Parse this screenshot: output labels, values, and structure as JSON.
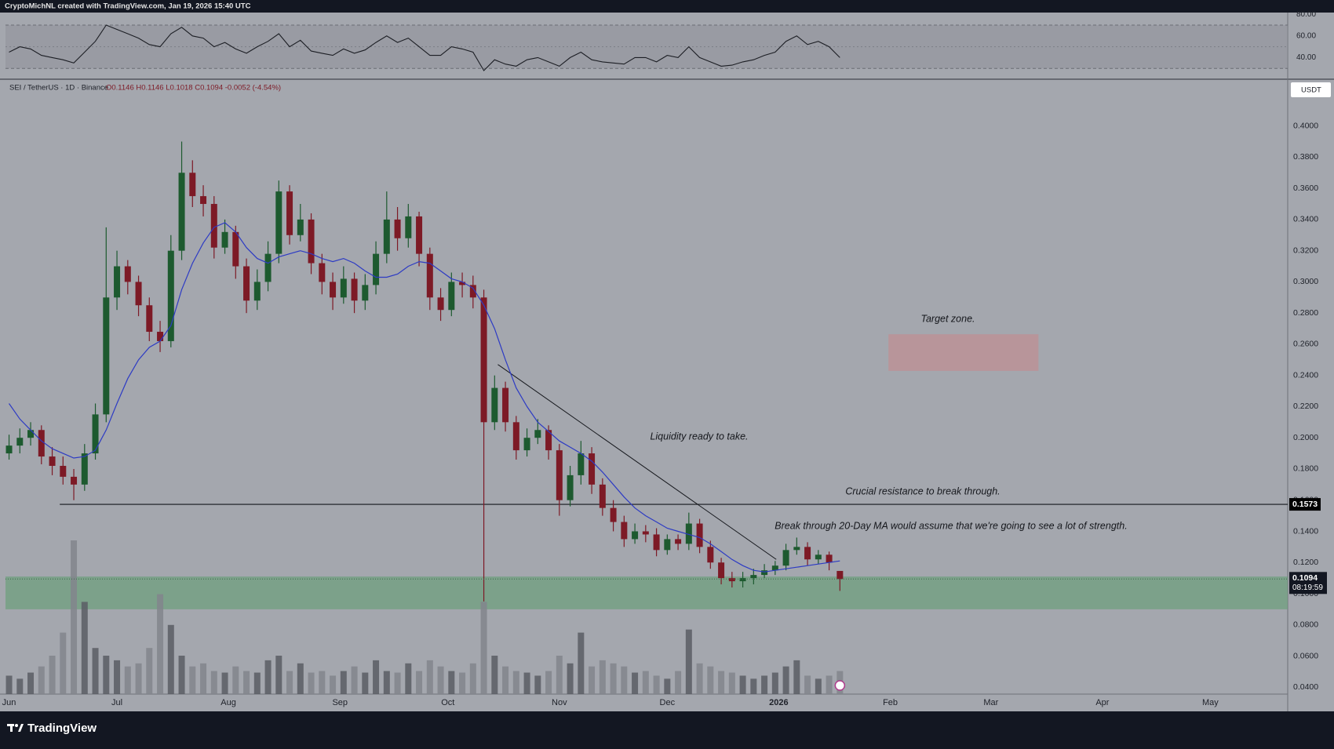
{
  "header": "CryptoMichNL created with TradingView.com, Jan 19, 2026 15:40 UTC",
  "footer": "TradingView",
  "chart_data": [
    {
      "type": "line",
      "series": [
        {
          "color": "#1c1e24",
          "values": [
            45,
            50,
            48,
            42,
            40,
            38,
            35,
            45,
            55,
            70,
            66,
            62,
            58,
            52,
            50,
            62,
            68,
            60,
            58,
            50,
            54,
            48,
            44,
            50,
            55,
            62,
            50,
            56,
            46,
            44,
            42,
            48,
            44,
            47,
            54,
            60,
            54,
            58,
            50,
            42,
            42,
            50,
            48,
            45,
            28,
            38,
            34,
            32,
            38,
            40,
            36,
            32,
            40,
            45,
            38,
            36,
            35,
            34,
            40,
            40,
            36,
            42,
            40,
            50,
            40,
            36,
            32,
            33,
            36,
            38,
            42,
            45,
            55,
            60,
            52,
            55,
            50,
            40
          ]
        }
      ],
      "band": [
        30,
        70
      ],
      "midline": 50,
      "band_color": "#8f929a",
      "ylim": [
        20,
        81.6
      ],
      "yticks": [
        {
          "value": 80,
          "label": "80.00"
        },
        {
          "value": 60,
          "label": "60.00"
        },
        {
          "value": 40,
          "label": "40.00"
        }
      ]
    },
    {
      "type": "candlestick",
      "symbol": "SEI / TetherUS · 1D · Binance",
      "ohlc_text": "O0.1146 H0.1146 L0.1018 C0.1094 -0.0052 (-4.54%)",
      "currency": "USDT",
      "up_color": "#1d5a2f",
      "down_color": "#7d1a26",
      "categories": [
        null,
        null,
        null,
        null,
        null,
        null,
        null,
        null,
        null,
        null,
        null,
        null,
        null,
        null,
        null,
        null,
        null,
        null,
        null,
        null,
        null,
        null,
        null,
        null,
        null,
        null,
        null,
        null,
        null,
        null,
        null,
        null,
        null,
        null,
        null,
        null,
        null,
        null,
        null,
        null,
        null,
        null,
        null,
        null,
        null,
        null,
        null,
        null,
        null,
        null,
        null,
        null,
        null,
        null,
        null,
        null,
        null,
        null,
        null,
        null,
        null,
        null,
        null,
        null,
        null,
        null,
        null,
        null,
        null,
        null,
        null,
        null,
        null,
        null,
        null,
        null,
        null,
        null
      ],
      "open": [
        0.19,
        0.195,
        0.2,
        0.205,
        0.188,
        0.182,
        0.175,
        0.17,
        0.19,
        0.215,
        0.29,
        0.31,
        0.3,
        0.285,
        0.268,
        0.262,
        0.32,
        0.37,
        0.355,
        0.35,
        0.322,
        0.332,
        0.31,
        0.288,
        0.3,
        0.318,
        0.358,
        0.33,
        0.34,
        0.312,
        0.3,
        0.29,
        0.302,
        0.288,
        0.298,
        0.318,
        0.34,
        0.328,
        0.342,
        0.318,
        0.29,
        0.282,
        0.3,
        0.298,
        0.29,
        0.21,
        0.232,
        0.21,
        0.192,
        0.2,
        0.205,
        0.192,
        0.16,
        0.176,
        0.19,
        0.17,
        0.155,
        0.146,
        0.135,
        0.14,
        0.138,
        0.128,
        0.135,
        0.132,
        0.145,
        0.13,
        0.12,
        0.11,
        0.108,
        0.11,
        0.112,
        0.115,
        0.118,
        0.128,
        0.13,
        0.122,
        0.125,
        0.1146
      ],
      "high": [
        0.202,
        0.206,
        0.21,
        0.208,
        0.194,
        0.188,
        0.18,
        0.196,
        0.222,
        0.335,
        0.32,
        0.314,
        0.304,
        0.29,
        0.275,
        0.33,
        0.39,
        0.378,
        0.362,
        0.355,
        0.34,
        0.336,
        0.315,
        0.308,
        0.326,
        0.365,
        0.362,
        0.35,
        0.344,
        0.318,
        0.306,
        0.31,
        0.306,
        0.305,
        0.326,
        0.358,
        0.348,
        0.35,
        0.345,
        0.322,
        0.296,
        0.306,
        0.306,
        0.304,
        0.295,
        0.24,
        0.236,
        0.214,
        0.206,
        0.212,
        0.208,
        0.196,
        0.182,
        0.198,
        0.194,
        0.174,
        0.16,
        0.15,
        0.145,
        0.144,
        0.142,
        0.138,
        0.138,
        0.152,
        0.148,
        0.134,
        0.123,
        0.114,
        0.114,
        0.116,
        0.119,
        0.121,
        0.132,
        0.136,
        0.133,
        0.128,
        0.127,
        0.1146
      ],
      "low": [
        0.186,
        0.19,
        0.195,
        0.183,
        0.176,
        0.17,
        0.16,
        0.166,
        0.186,
        0.21,
        0.282,
        0.292,
        0.278,
        0.262,
        0.255,
        0.258,
        0.314,
        0.348,
        0.342,
        0.315,
        0.318,
        0.302,
        0.28,
        0.282,
        0.294,
        0.312,
        0.324,
        0.326,
        0.305,
        0.292,
        0.282,
        0.286,
        0.28,
        0.282,
        0.292,
        0.312,
        0.32,
        0.322,
        0.31,
        0.282,
        0.275,
        0.278,
        0.29,
        0.283,
        0.095,
        0.205,
        0.204,
        0.186,
        0.188,
        0.196,
        0.186,
        0.15,
        0.156,
        0.17,
        0.164,
        0.15,
        0.14,
        0.13,
        0.132,
        0.133,
        0.124,
        0.125,
        0.128,
        0.128,
        0.126,
        0.116,
        0.106,
        0.104,
        0.104,
        0.106,
        0.11,
        0.112,
        0.115,
        0.125,
        0.118,
        0.119,
        0.115,
        0.1018
      ],
      "close": [
        0.195,
        0.2,
        0.205,
        0.188,
        0.182,
        0.175,
        0.17,
        0.19,
        0.215,
        0.29,
        0.31,
        0.3,
        0.285,
        0.268,
        0.262,
        0.32,
        0.37,
        0.355,
        0.35,
        0.322,
        0.332,
        0.31,
        0.288,
        0.3,
        0.318,
        0.358,
        0.33,
        0.34,
        0.312,
        0.3,
        0.29,
        0.302,
        0.288,
        0.298,
        0.318,
        0.34,
        0.328,
        0.342,
        0.318,
        0.29,
        0.282,
        0.3,
        0.298,
        0.29,
        0.21,
        0.232,
        0.21,
        0.192,
        0.2,
        0.205,
        0.192,
        0.16,
        0.176,
        0.19,
        0.17,
        0.155,
        0.146,
        0.135,
        0.14,
        0.138,
        0.128,
        0.135,
        0.132,
        0.145,
        0.13,
        0.12,
        0.11,
        0.108,
        0.11,
        0.112,
        0.115,
        0.118,
        0.128,
        0.13,
        0.122,
        0.125,
        0.12,
        0.1094
      ],
      "volume": {
        "up_color": "#5a5d64",
        "down_color": "#82858c",
        "values": [
          12,
          10,
          14,
          18,
          25,
          40,
          100,
          60,
          30,
          25,
          22,
          18,
          20,
          30,
          65,
          45,
          25,
          18,
          20,
          15,
          14,
          18,
          15,
          14,
          22,
          25,
          15,
          20,
          14,
          15,
          12,
          15,
          18,
          14,
          22,
          15,
          14,
          20,
          15,
          22,
          18,
          15,
          14,
          20,
          60,
          25,
          18,
          15,
          14,
          12,
          15,
          25,
          20,
          40,
          18,
          22,
          20,
          18,
          14,
          15,
          12,
          10,
          15,
          42,
          20,
          18,
          15,
          14,
          12,
          10,
          12,
          14,
          18,
          22,
          12,
          10,
          12,
          15
        ]
      },
      "ma": {
        "color": "#2d3bc4",
        "values": [
          0.222,
          0.212,
          0.205,
          0.198,
          0.193,
          0.19,
          0.187,
          0.188,
          0.192,
          0.205,
          0.222,
          0.238,
          0.25,
          0.258,
          0.262,
          0.272,
          0.295,
          0.312,
          0.325,
          0.335,
          0.338,
          0.332,
          0.322,
          0.315,
          0.312,
          0.316,
          0.318,
          0.32,
          0.318,
          0.315,
          0.313,
          0.315,
          0.312,
          0.307,
          0.303,
          0.303,
          0.305,
          0.31,
          0.313,
          0.312,
          0.307,
          0.302,
          0.3,
          0.296,
          0.285,
          0.27,
          0.25,
          0.232,
          0.22,
          0.21,
          0.204,
          0.198,
          0.194,
          0.19,
          0.185,
          0.178,
          0.17,
          0.162,
          0.155,
          0.15,
          0.146,
          0.142,
          0.14,
          0.138,
          0.136,
          0.132,
          0.127,
          0.122,
          0.118,
          0.115,
          0.114,
          0.115,
          0.116,
          0.117,
          0.118,
          0.119,
          0.12,
          0.121
        ]
      },
      "ylim": [
        0.0356,
        0.43
      ],
      "yticks": [
        {
          "value": 0.04,
          "label": "0.0400"
        },
        {
          "value": 0.06,
          "label": "0.0600"
        },
        {
          "value": 0.08,
          "label": "0.0800"
        },
        {
          "value": 0.1,
          "label": "0.1000"
        },
        {
          "value": 0.12,
          "label": "0.1200"
        },
        {
          "value": 0.14,
          "label": "0.1400"
        },
        {
          "value": 0.16,
          "label": "0.1600"
        },
        {
          "value": 0.18,
          "label": "0.1800"
        },
        {
          "value": 0.2,
          "label": "0.2000"
        },
        {
          "value": 0.22,
          "label": "0.2200"
        },
        {
          "value": 0.24,
          "label": "0.2400"
        },
        {
          "value": 0.26,
          "label": "0.2600"
        },
        {
          "value": 0.28,
          "label": "0.2800"
        },
        {
          "value": 0.3,
          "label": "0.3000"
        },
        {
          "value": 0.32,
          "label": "0.3200"
        },
        {
          "value": 0.34,
          "label": "0.3400"
        },
        {
          "value": 0.36,
          "label": "0.3600"
        },
        {
          "value": 0.38,
          "label": "0.3800"
        },
        {
          "value": 0.4,
          "label": "0.4000"
        }
      ],
      "xlim": [
        -0.33,
        118.5
      ],
      "xticks": [
        {
          "value": 0,
          "label": "Jun"
        },
        {
          "value": 10,
          "label": "Jul"
        },
        {
          "value": 20.33,
          "label": "Aug"
        },
        {
          "value": 30.67,
          "label": "Sep"
        },
        {
          "value": 40.67,
          "label": "Oct"
        },
        {
          "value": 51,
          "label": "Nov"
        },
        {
          "value": 61,
          "label": "Dec"
        },
        {
          "value": 71.33,
          "label": "2026"
        },
        {
          "value": 81.67,
          "label": "Feb"
        },
        {
          "value": 91,
          "label": "Mar"
        },
        {
          "value": 101.33,
          "label": "Apr"
        },
        {
          "value": 111.33,
          "label": "May"
        }
      ],
      "resistance": {
        "value": 0.1573,
        "label": "0.1573",
        "start": 4.7
      },
      "last_price": {
        "value": 0.1094,
        "label": "0.1094",
        "countdown": "08:19:59"
      },
      "support_zone": {
        "low": 0.09,
        "high": 0.111,
        "color": "#6f9f7e"
      },
      "target_zone": {
        "low": 0.2429,
        "high": 0.2664,
        "from": 81.5,
        "to": 95.4,
        "color": "#b8959a"
      },
      "trendline": {
        "x": [
          45.3,
          71.1
        ],
        "y": [
          0.247,
          0.122
        ]
      },
      "annotations": [
        "Target zone.",
        "Liquidity ready to take.",
        "Crucial resistance to break through.",
        "Break through 20-Day MA would assume that we're going to see a lot of strength."
      ]
    }
  ]
}
